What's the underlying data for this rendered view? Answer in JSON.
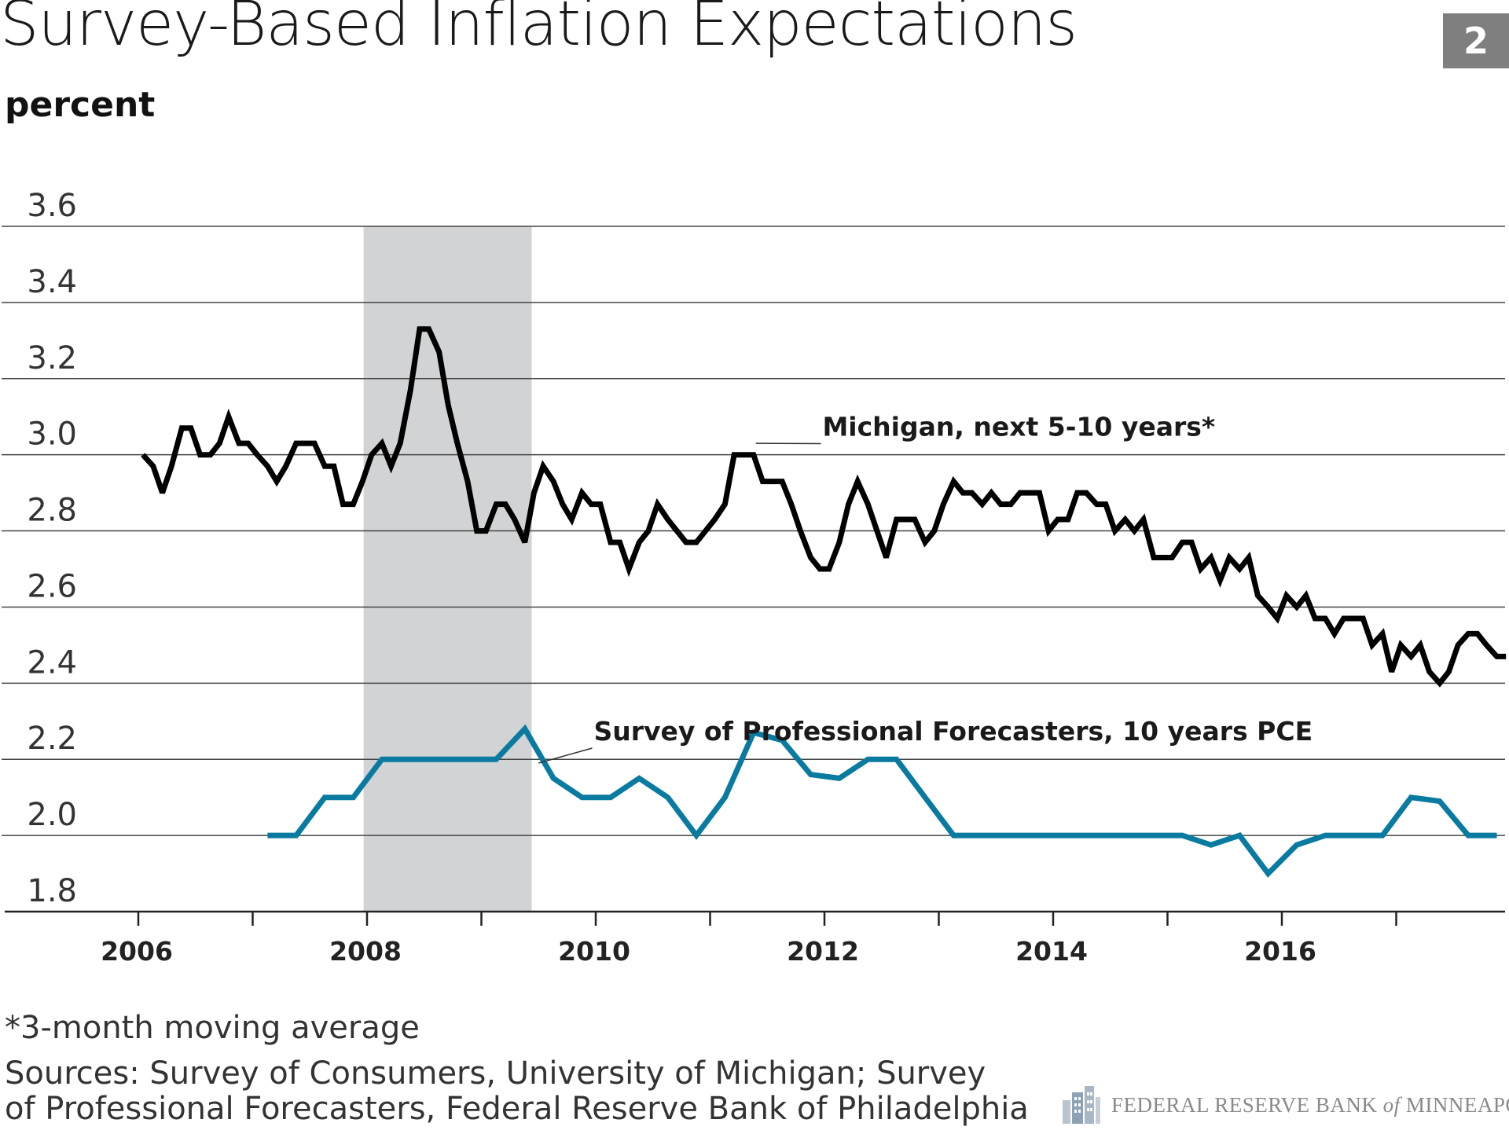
{
  "header": {
    "title": "Survey-Based Inflation Expectations",
    "badge": "2",
    "unit_label": "percent"
  },
  "footer": {
    "footnote": "*3-month moving average",
    "sources_line1": "Sources: Survey of Consumers, University of Michigan; Survey",
    "sources_line2": "of Professional Forecasters, Federal Reserve Bank of Philadelphia",
    "logo_part1": "FEDERAL RESERVE BANK ",
    "logo_part2": "of",
    "logo_part3": " MINNEAPOLIS",
    "logo_icon": "building-icon"
  },
  "colors": {
    "michigan": "#000000",
    "spf": "#0a7ba0",
    "recession": "#d2d3d5",
    "grid": "#444444",
    "badge": "#7f7f7f"
  },
  "chart_data": {
    "type": "line",
    "title": "Survey-Based Inflation Expectations",
    "ylabel": "percent",
    "xlabel": "",
    "ylim": [
      1.8,
      3.6
    ],
    "xlim": [
      2005.5,
      2018.2
    ],
    "y_ticks": [
      1.8,
      2.0,
      2.2,
      2.4,
      2.6,
      2.8,
      3.0,
      3.2,
      3.4,
      3.6
    ],
    "y_tick_labels": [
      "1.8",
      "2.0",
      "2.2",
      "2.4",
      "2.6",
      "2.8",
      "3.0",
      "3.2",
      "3.4",
      "3.6"
    ],
    "x_major_ticks": [
      2006,
      2008,
      2010,
      2012,
      2014,
      2016
    ],
    "x_tick_labels": [
      "2006",
      "2008",
      "2010",
      "2012",
      "2014",
      "2016"
    ],
    "x_minor_ticks": [
      2007,
      2009,
      2011,
      2013,
      2015,
      2017
    ],
    "grid": "horizontal",
    "shaded_regions": [
      {
        "start": 2007.97,
        "end": 2009.44
      }
    ],
    "series": [
      {
        "name": "Michigan, next 5-10 years*",
        "points": [
          [
            2006.04,
            3.0
          ],
          [
            2006.13,
            2.97
          ],
          [
            2006.21,
            2.9
          ],
          [
            2006.29,
            2.97
          ],
          [
            2006.38,
            3.07
          ],
          [
            2006.46,
            3.07
          ],
          [
            2006.54,
            3.0
          ],
          [
            2006.63,
            3.0
          ],
          [
            2006.71,
            3.03
          ],
          [
            2006.79,
            3.1
          ],
          [
            2006.88,
            3.03
          ],
          [
            2006.96,
            3.03
          ],
          [
            2007.04,
            3.0
          ],
          [
            2007.13,
            2.97
          ],
          [
            2007.21,
            2.93
          ],
          [
            2007.29,
            2.97
          ],
          [
            2007.38,
            3.03
          ],
          [
            2007.46,
            3.03
          ],
          [
            2007.54,
            3.03
          ],
          [
            2007.63,
            2.97
          ],
          [
            2007.71,
            2.97
          ],
          [
            2007.79,
            2.87
          ],
          [
            2007.88,
            2.87
          ],
          [
            2007.96,
            2.93
          ],
          [
            2008.04,
            3.0
          ],
          [
            2008.13,
            3.03
          ],
          [
            2008.21,
            2.97
          ],
          [
            2008.29,
            3.03
          ],
          [
            2008.38,
            3.17
          ],
          [
            2008.46,
            3.33
          ],
          [
            2008.54,
            3.33
          ],
          [
            2008.63,
            3.27
          ],
          [
            2008.71,
            3.13
          ],
          [
            2008.79,
            3.03
          ],
          [
            2008.88,
            2.93
          ],
          [
            2008.96,
            2.8
          ],
          [
            2009.04,
            2.8
          ],
          [
            2009.13,
            2.87
          ],
          [
            2009.21,
            2.87
          ],
          [
            2009.29,
            2.83
          ],
          [
            2009.38,
            2.77
          ],
          [
            2009.46,
            2.9
          ],
          [
            2009.54,
            2.97
          ],
          [
            2009.63,
            2.93
          ],
          [
            2009.71,
            2.87
          ],
          [
            2009.79,
            2.83
          ],
          [
            2009.88,
            2.9
          ],
          [
            2009.96,
            2.87
          ],
          [
            2010.04,
            2.87
          ],
          [
            2010.13,
            2.77
          ],
          [
            2010.21,
            2.77
          ],
          [
            2010.29,
            2.7
          ],
          [
            2010.38,
            2.77
          ],
          [
            2010.46,
            2.8
          ],
          [
            2010.54,
            2.87
          ],
          [
            2010.63,
            2.83
          ],
          [
            2010.71,
            2.8
          ],
          [
            2010.79,
            2.77
          ],
          [
            2010.88,
            2.77
          ],
          [
            2010.96,
            2.8
          ],
          [
            2011.04,
            2.83
          ],
          [
            2011.13,
            2.87
          ],
          [
            2011.21,
            3.0
          ],
          [
            2011.29,
            3.0
          ],
          [
            2011.38,
            3.0
          ],
          [
            2011.46,
            2.93
          ],
          [
            2011.54,
            2.93
          ],
          [
            2011.63,
            2.93
          ],
          [
            2011.71,
            2.87
          ],
          [
            2011.79,
            2.8
          ],
          [
            2011.88,
            2.73
          ],
          [
            2011.96,
            2.7
          ],
          [
            2012.04,
            2.7
          ],
          [
            2012.13,
            2.77
          ],
          [
            2012.21,
            2.87
          ],
          [
            2012.29,
            2.93
          ],
          [
            2012.38,
            2.87
          ],
          [
            2012.46,
            2.8
          ],
          [
            2012.54,
            2.73
          ],
          [
            2012.63,
            2.83
          ],
          [
            2012.71,
            2.83
          ],
          [
            2012.79,
            2.83
          ],
          [
            2012.88,
            2.77
          ],
          [
            2012.96,
            2.8
          ],
          [
            2013.04,
            2.87
          ],
          [
            2013.13,
            2.93
          ],
          [
            2013.21,
            2.9
          ],
          [
            2013.29,
            2.9
          ],
          [
            2013.38,
            2.87
          ],
          [
            2013.46,
            2.9
          ],
          [
            2013.54,
            2.87
          ],
          [
            2013.63,
            2.87
          ],
          [
            2013.71,
            2.9
          ],
          [
            2013.79,
            2.9
          ],
          [
            2013.88,
            2.9
          ],
          [
            2013.96,
            2.8
          ],
          [
            2014.04,
            2.83
          ],
          [
            2014.13,
            2.83
          ],
          [
            2014.21,
            2.9
          ],
          [
            2014.29,
            2.9
          ],
          [
            2014.38,
            2.87
          ],
          [
            2014.46,
            2.87
          ],
          [
            2014.54,
            2.8
          ],
          [
            2014.63,
            2.83
          ],
          [
            2014.71,
            2.8
          ],
          [
            2014.79,
            2.83
          ],
          [
            2014.88,
            2.73
          ],
          [
            2014.96,
            2.73
          ],
          [
            2015.04,
            2.73
          ],
          [
            2015.13,
            2.77
          ],
          [
            2015.21,
            2.77
          ],
          [
            2015.29,
            2.7
          ],
          [
            2015.38,
            2.73
          ],
          [
            2015.46,
            2.67
          ],
          [
            2015.54,
            2.73
          ],
          [
            2015.63,
            2.7
          ],
          [
            2015.71,
            2.73
          ],
          [
            2015.79,
            2.63
          ],
          [
            2015.88,
            2.6
          ],
          [
            2015.96,
            2.57
          ],
          [
            2016.04,
            2.63
          ],
          [
            2016.13,
            2.6
          ],
          [
            2016.21,
            2.63
          ],
          [
            2016.29,
            2.57
          ],
          [
            2016.38,
            2.57
          ],
          [
            2016.46,
            2.53
          ],
          [
            2016.54,
            2.57
          ],
          [
            2016.63,
            2.57
          ],
          [
            2016.71,
            2.57
          ],
          [
            2016.79,
            2.5
          ],
          [
            2016.88,
            2.53
          ],
          [
            2016.96,
            2.43
          ],
          [
            2017.04,
            2.5
          ],
          [
            2017.13,
            2.47
          ],
          [
            2017.21,
            2.5
          ],
          [
            2017.29,
            2.43
          ],
          [
            2017.38,
            2.4
          ],
          [
            2017.46,
            2.43
          ],
          [
            2017.54,
            2.5
          ],
          [
            2017.63,
            2.53
          ],
          [
            2017.71,
            2.53
          ],
          [
            2017.79,
            2.5
          ],
          [
            2017.88,
            2.47
          ],
          [
            2017.96,
            2.47
          ]
        ]
      },
      {
        "name": "Survey of Professional Forecasters, 10 years PCE",
        "points": [
          [
            2007.13,
            2.0
          ],
          [
            2007.38,
            2.0
          ],
          [
            2007.63,
            2.1
          ],
          [
            2007.88,
            2.1
          ],
          [
            2008.13,
            2.2
          ],
          [
            2008.38,
            2.2
          ],
          [
            2008.63,
            2.2
          ],
          [
            2008.88,
            2.2
          ],
          [
            2009.13,
            2.2
          ],
          [
            2009.38,
            2.28
          ],
          [
            2009.63,
            2.15
          ],
          [
            2009.88,
            2.1
          ],
          [
            2010.13,
            2.1
          ],
          [
            2010.38,
            2.15
          ],
          [
            2010.63,
            2.1
          ],
          [
            2010.88,
            2.0
          ],
          [
            2011.13,
            2.1
          ],
          [
            2011.38,
            2.27
          ],
          [
            2011.63,
            2.25
          ],
          [
            2011.88,
            2.16
          ],
          [
            2012.13,
            2.15
          ],
          [
            2012.38,
            2.2
          ],
          [
            2012.63,
            2.2
          ],
          [
            2012.88,
            2.1
          ],
          [
            2013.13,
            2.0
          ],
          [
            2013.38,
            2.0
          ],
          [
            2013.63,
            2.0
          ],
          [
            2013.88,
            2.0
          ],
          [
            2014.13,
            2.0
          ],
          [
            2014.38,
            2.0
          ],
          [
            2014.63,
            2.0
          ],
          [
            2014.88,
            2.0
          ],
          [
            2015.13,
            2.0
          ],
          [
            2015.38,
            1.975
          ],
          [
            2015.63,
            2.0
          ],
          [
            2015.88,
            1.9
          ],
          [
            2016.13,
            1.975
          ],
          [
            2016.38,
            2.0
          ],
          [
            2016.63,
            2.0
          ],
          [
            2016.88,
            2.0
          ],
          [
            2017.13,
            2.1
          ],
          [
            2017.38,
            2.09
          ],
          [
            2017.63,
            2.0
          ],
          [
            2017.88,
            2.0
          ]
        ]
      }
    ],
    "annotations": [
      {
        "text": "Michigan, next 5-10 years*",
        "series": 0,
        "anchor": [
          2011.4,
          3.03
        ],
        "text_at": [
          2011.9,
          3.05
        ]
      },
      {
        "text": "Survey of Professional Forecasters, 10 years PCE",
        "series": 1,
        "anchor": [
          2009.5,
          2.19
        ],
        "text_at": [
          2009.9,
          2.25
        ]
      }
    ]
  }
}
